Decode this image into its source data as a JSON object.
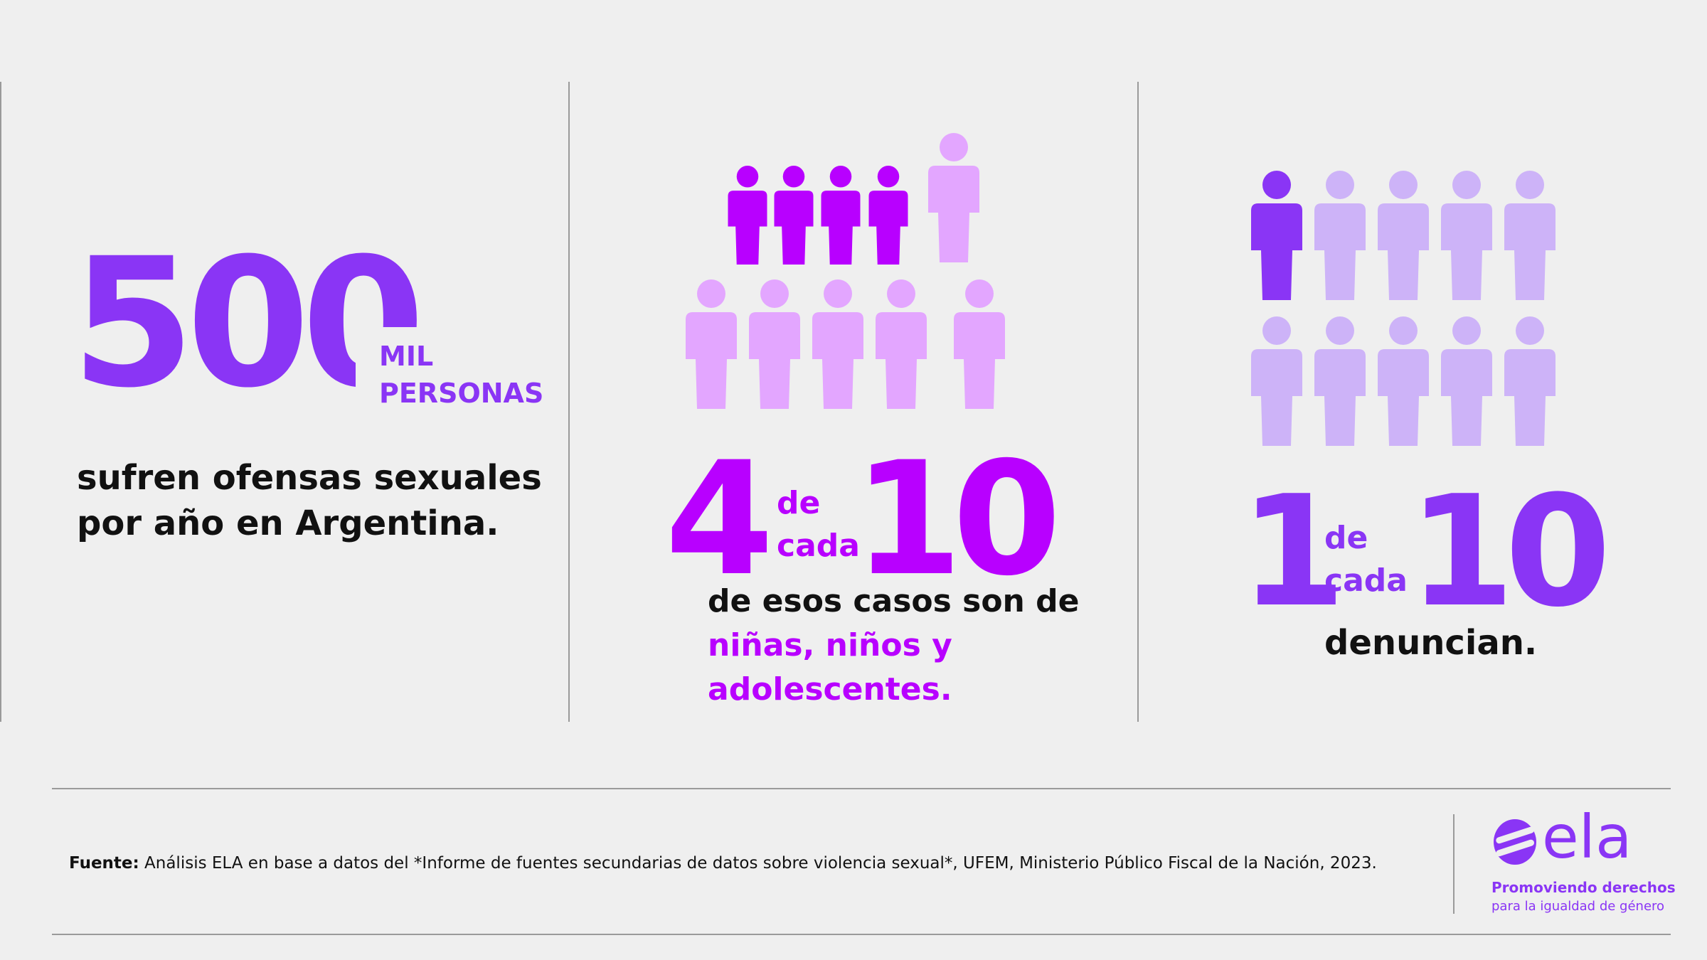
{
  "panel1": {
    "number": "500",
    "unit_line1": "MIL",
    "unit_line2": "PERSONAS",
    "text_line1": "sufren ofensas sexuales",
    "text_line2": "por año en Argentina."
  },
  "panel2": {
    "numerator": "4",
    "de": "de",
    "cada": "cada",
    "denominator": "10",
    "text_line1": "de esos casos son de",
    "text_line2": "niñas, niños y",
    "text_line3": "adolescentes.",
    "highlighted_count": 4,
    "total_count": 10,
    "icon_name": "person-icon"
  },
  "panel3": {
    "numerator": "1",
    "de": "de",
    "cada": "cada",
    "denominator": "10",
    "text": "denuncian.",
    "highlighted_count": 1,
    "total_count": 10,
    "icon_name": "person-icon"
  },
  "footer": {
    "source_label": "Fuente:",
    "source_text": " Análisis ELA en base a datos del *Informe de fuentes secundarias de datos sobre violencia sexual*, UFEM, Ministerio Público Fiscal de la Nación, 2023."
  },
  "logo": {
    "name": "ela",
    "tagline_line1": "Promoviendo derechos",
    "tagline_line2": "para la igualdad de género"
  },
  "colors": {
    "purple": "#8a35f5",
    "magenta": "#b800ff",
    "light_magenta": "#e3a6ff",
    "light_purple": "#cdb3f8",
    "background": "#efefef"
  }
}
